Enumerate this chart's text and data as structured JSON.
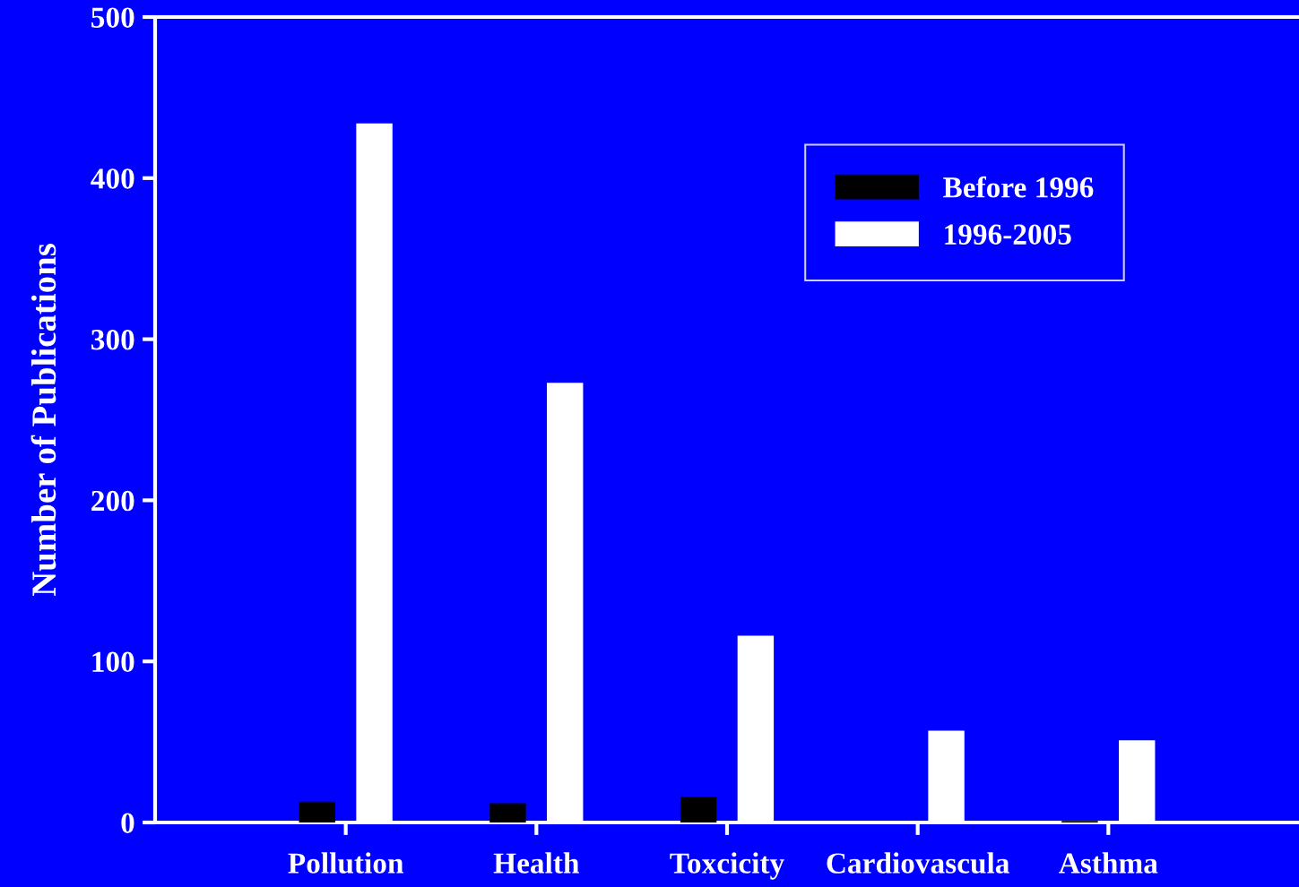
{
  "chart_data": {
    "type": "bar",
    "ylabel": "Number of Publications",
    "categories": [
      "Pollution",
      "Health",
      "Toxcicity",
      "Cardiovascula",
      "Asthma"
    ],
    "series": [
      {
        "name": "Before 1996",
        "color": "#000000",
        "values": [
          13,
          12,
          16,
          0,
          1
        ]
      },
      {
        "name": "1996-2005",
        "color": "#ffffff",
        "values": [
          434,
          273,
          116,
          57,
          51
        ]
      }
    ],
    "ylim": [
      0,
      500
    ],
    "yticks": [
      0,
      100,
      200,
      300,
      400,
      500
    ],
    "grid": false,
    "legend": "top right"
  }
}
